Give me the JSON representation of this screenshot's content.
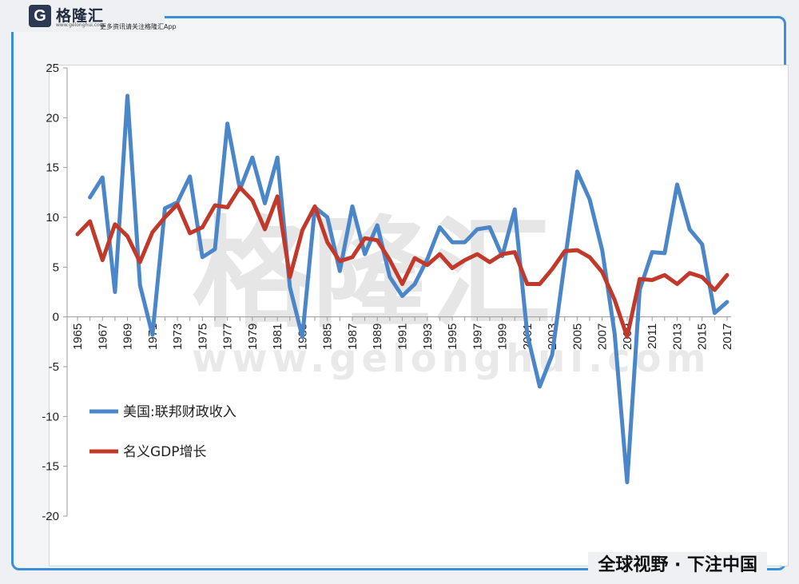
{
  "logo": {
    "mark": "G",
    "name": "格隆汇",
    "url": "www.gelonghui.com",
    "tagline": "更多资讯请关注格隆汇App"
  },
  "slogan": "全球视野 · 下注中国",
  "watermark": {
    "text": "格隆汇",
    "url": "www.gelonghui.com"
  },
  "chart_data": {
    "type": "line",
    "x": [
      1965,
      1966,
      1967,
      1968,
      1969,
      1970,
      1971,
      1972,
      1973,
      1974,
      1975,
      1976,
      1977,
      1978,
      1979,
      1980,
      1981,
      1982,
      1983,
      1984,
      1985,
      1986,
      1987,
      1988,
      1989,
      1990,
      1991,
      1992,
      1993,
      1994,
      1995,
      1996,
      1997,
      1998,
      1999,
      2000,
      2001,
      2002,
      2003,
      2004,
      2005,
      2006,
      2007,
      2008,
      2009,
      2010,
      2011,
      2012,
      2013,
      2014,
      2015,
      2016,
      2017
    ],
    "x_tick_labels": [
      "1965",
      "1967",
      "1969",
      "1971",
      "1973",
      "1975",
      "1977",
      "1979",
      "1981",
      "1983",
      "1985",
      "1987",
      "1989",
      "1991",
      "1993",
      "1995",
      "1997",
      "1999",
      "2001",
      "2003",
      "2005",
      "2007",
      "2009",
      "2011",
      "2013",
      "2015",
      "2017"
    ],
    "ylim": [
      -20,
      25
    ],
    "y_ticks": [
      25,
      20,
      15,
      10,
      5,
      0,
      -5,
      -10,
      -15,
      -20
    ],
    "series": [
      {
        "name": "美国:联邦财政收入",
        "color": "#4a86c8",
        "values": [
          null,
          12.0,
          14.0,
          2.5,
          22.2,
          3.2,
          -1.8,
          10.9,
          11.5,
          14.1,
          6.0,
          6.8,
          19.4,
          12.8,
          16.0,
          11.4,
          16.0,
          3.0,
          -2.0,
          11.0,
          10.0,
          4.6,
          11.1,
          6.3,
          9.2,
          4.0,
          2.1,
          3.3,
          5.8,
          9.0,
          7.5,
          7.5,
          8.8,
          9.0,
          6.1,
          10.8,
          -1.7,
          -7.0,
          -3.8,
          5.5,
          14.6,
          11.8,
          6.7,
          -1.7,
          -16.6,
          2.7,
          6.5,
          6.4,
          13.3,
          8.8,
          7.3,
          0.4,
          1.5
        ]
      },
      {
        "name": "名义GDP增长",
        "color": "#c0392b",
        "values": [
          8.3,
          9.6,
          5.7,
          9.3,
          8.1,
          5.5,
          8.5,
          10.0,
          11.3,
          8.4,
          9.0,
          11.2,
          11.0,
          13.0,
          11.7,
          8.8,
          12.1,
          4.0,
          8.7,
          11.1,
          7.5,
          5.6,
          6.0,
          7.9,
          7.7,
          5.7,
          3.3,
          5.9,
          5.2,
          6.3,
          4.9,
          5.7,
          6.3,
          5.5,
          6.3,
          6.5,
          3.3,
          3.3,
          4.8,
          6.6,
          6.7,
          6.0,
          4.5,
          1.7,
          -2.0,
          3.8,
          3.7,
          4.2,
          3.3,
          4.4,
          4.0,
          2.7,
          4.2
        ]
      }
    ]
  }
}
